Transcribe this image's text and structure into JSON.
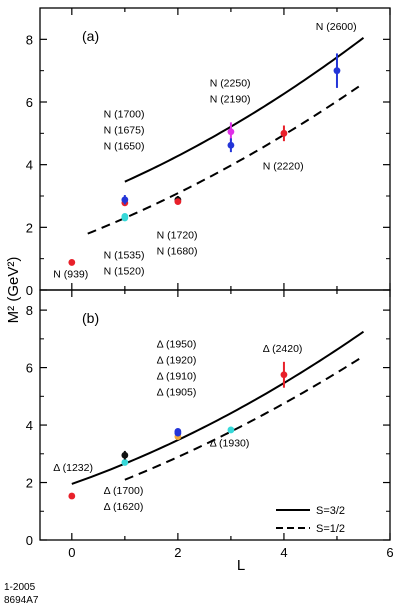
{
  "footer": {
    "line1": "1-2005",
    "line2": "8694A7"
  },
  "chart_data": [
    {
      "type": "scatter",
      "panel_label": "(a)",
      "title": "",
      "xlabel": "L",
      "ylabel": "M² (GeV²)",
      "xlim": [
        -0.6,
        6.0
      ],
      "ylim": [
        0,
        9
      ],
      "xticks": [
        0,
        2,
        4,
        6
      ],
      "yticks": [
        0,
        2,
        4,
        6,
        8
      ],
      "grid": false,
      "curves": [
        {
          "style": "solid",
          "a": 2.75,
          "b": 0.65,
          "c": 0.057,
          "x_range": [
            1,
            5.5
          ]
        },
        {
          "style": "dashed",
          "a": 1.6,
          "b": 0.65,
          "c": 0.047,
          "x_range": [
            0.3,
            5.5
          ]
        }
      ],
      "points": [
        {
          "x": 0,
          "y": 0.88,
          "yerr": 0,
          "color": "#e8202a"
        },
        {
          "x": 1,
          "y": 2.3,
          "yerr": 0,
          "color": "#36d8d8"
        },
        {
          "x": 1,
          "y": 2.35,
          "yerr": 0,
          "color": "#36d8d8"
        },
        {
          "x": 1,
          "y": 2.78,
          "yerr": 0.05,
          "color": "#e8202a"
        },
        {
          "x": 1,
          "y": 2.88,
          "yerr": 0.15,
          "color": "#2335d8"
        },
        {
          "x": 2,
          "y": 2.88,
          "yerr": 0.12,
          "color": "#111111"
        },
        {
          "x": 2,
          "y": 2.82,
          "yerr": 0,
          "color": "#e8202a"
        },
        {
          "x": 3,
          "y": 5.05,
          "yerr": 0.3,
          "color": "#e030e8"
        },
        {
          "x": 3,
          "y": 4.62,
          "yerr": 0.22,
          "color": "#2335d8"
        },
        {
          "x": 4,
          "y": 5.0,
          "yerr": 0.25,
          "color": "#e8202a"
        },
        {
          "x": 5,
          "y": 7.0,
          "yerr": 0.55,
          "color": "#2335d8"
        }
      ],
      "annotations": [
        {
          "lines": [
            "N (939)"
          ],
          "x": -0.35,
          "y": 0.4
        },
        {
          "lines": [
            "N (1535)",
            "N (1520)"
          ],
          "x": 0.6,
          "y": 1.0
        },
        {
          "lines": [
            "N (1700)",
            "N (1675)",
            "N (1650)"
          ],
          "x": 0.6,
          "y": 5.5
        },
        {
          "lines": [
            "N (1720)",
            "N (1680)"
          ],
          "x": 1.6,
          "y": 1.65
        },
        {
          "lines": [
            "N (2250)",
            "N (2190)"
          ],
          "x": 2.6,
          "y": 6.5
        },
        {
          "lines": [
            "N (2220)"
          ],
          "x": 3.6,
          "y": 3.85
        },
        {
          "lines": [
            "N (2600)"
          ],
          "x": 4.6,
          "y": 8.3
        }
      ]
    },
    {
      "type": "scatter",
      "panel_label": "(b)",
      "title": "",
      "xlabel": "L",
      "ylabel": "M² (GeV²)",
      "xlim": [
        -0.6,
        6.0
      ],
      "ylim": [
        0,
        8.7
      ],
      "xticks": [
        0,
        2,
        4,
        6
      ],
      "yticks": [
        0,
        2,
        4,
        6,
        8
      ],
      "grid": false,
      "curves": [
        {
          "style": "solid",
          "a": 1.95,
          "b": 0.65,
          "c": 0.057,
          "x_range": [
            0,
            5.5
          ]
        },
        {
          "style": "dashed",
          "a": 1.4,
          "b": 0.65,
          "c": 0.047,
          "x_range": [
            1,
            5.5
          ]
        }
      ],
      "points": [
        {
          "x": 0,
          "y": 1.53,
          "yerr": 0,
          "color": "#e8202a"
        },
        {
          "x": 1,
          "y": 2.7,
          "yerr": 0,
          "color": "#36d8d8"
        },
        {
          "x": 1,
          "y": 2.95,
          "yerr": 0.15,
          "color": "#111111"
        },
        {
          "x": 2,
          "y": 3.6,
          "yerr": 0,
          "color": "#f0a838"
        },
        {
          "x": 2,
          "y": 3.72,
          "yerr": 0,
          "color": "#2335d8"
        },
        {
          "x": 2,
          "y": 3.78,
          "yerr": 0.1,
          "color": "#2335d8"
        },
        {
          "x": 3,
          "y": 3.83,
          "yerr": 0,
          "color": "#36d8d8"
        },
        {
          "x": 4,
          "y": 5.75,
          "yerr": 0.45,
          "color": "#e8202a"
        }
      ],
      "annotations": [
        {
          "lines": [
            "Δ (1232)"
          ],
          "x": -0.35,
          "y": 2.4
        },
        {
          "lines": [
            "Δ (1700)",
            "Δ (1620)"
          ],
          "x": 0.6,
          "y": 1.6
        },
        {
          "lines": [
            "Δ (1950)",
            "Δ (1920)",
            "Δ (1910)",
            "Δ (1905)"
          ],
          "x": 1.6,
          "y": 6.7
        },
        {
          "lines": [
            "Δ (1930)"
          ],
          "x": 2.6,
          "y": 3.25
        },
        {
          "lines": [
            "Δ (2420)"
          ],
          "x": 3.6,
          "y": 6.55
        }
      ],
      "legend": {
        "placement": "bottom-right",
        "entries": [
          {
            "label": "S=3/2",
            "style": "solid"
          },
          {
            "label": "S=1/2",
            "style": "dashed"
          }
        ]
      }
    }
  ]
}
